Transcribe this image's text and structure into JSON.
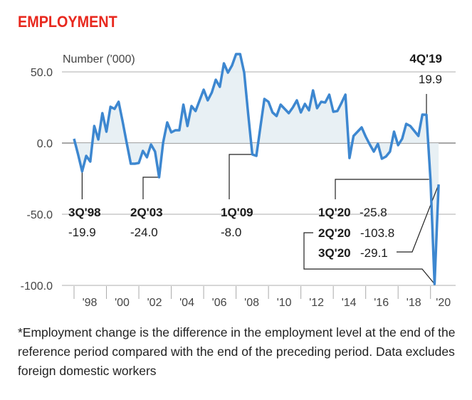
{
  "chart_data": {
    "type": "line",
    "title": "EMPLOYMENT",
    "ylabel": "Number ('000)",
    "xlabel": "",
    "ylim": [
      -100,
      50
    ],
    "y_ticks": [
      "50.0",
      "0.0",
      "-50.0",
      "-100.0"
    ],
    "y_tick_values": [
      50,
      0,
      -50,
      -100
    ],
    "x_tick_labels": [
      "'98",
      "'00",
      "'02",
      "'04",
      "'06",
      "'08",
      "'10",
      "'12",
      "'14",
      "'16",
      "'18",
      "'20"
    ],
    "x_start": "1Q98",
    "x_end": "3Q20",
    "frequency": "quarterly",
    "grid": true,
    "series": [
      {
        "name": "Employment change",
        "color": "#3d87d0",
        "values": [
          3,
          -8,
          -19.9,
          -9,
          -13,
          12,
          2.5,
          21,
          8,
          25.5,
          24,
          29,
          15,
          0,
          -14.5,
          -14.5,
          -14,
          -5.5,
          -10,
          -1,
          -6,
          -24,
          0.5,
          14.5,
          7.5,
          9,
          9,
          27,
          12,
          26,
          22.5,
          30,
          37.5,
          30,
          35.5,
          44.5,
          39.5,
          56,
          49.5,
          54.5,
          62.5,
          62.5,
          49.5,
          20,
          -8,
          -9,
          11,
          31,
          29,
          21.5,
          19,
          27,
          24,
          21,
          25,
          30,
          21.5,
          27.5,
          23,
          37,
          24.5,
          29,
          28.5,
          34,
          22,
          22.5,
          28,
          34,
          -10.5,
          5,
          8,
          11,
          4.5,
          -1,
          -6,
          -0.5,
          -11,
          -9.5,
          -6,
          8,
          -1.5,
          3,
          13.5,
          12,
          8.5,
          5,
          20,
          19.9,
          -25.8,
          -103.8,
          -29.1
        ]
      }
    ],
    "annotations": [
      {
        "label": "3Q'98",
        "value": "-19.9"
      },
      {
        "label": "2Q'03",
        "value": "-24.0"
      },
      {
        "label": "1Q'09",
        "value": "-8.0"
      },
      {
        "label": "4Q'19",
        "value": "19.9"
      },
      {
        "label": "1Q'20",
        "value": "-25.8"
      },
      {
        "label": "2Q'20",
        "value": "-103.8"
      },
      {
        "label": "3Q'20",
        "value": "-29.1"
      }
    ]
  },
  "footnote": "*Employment change is the difference in the employment level at the end of the reference period compared with the end of the preceding period. Data excludes foreign domestic workers"
}
